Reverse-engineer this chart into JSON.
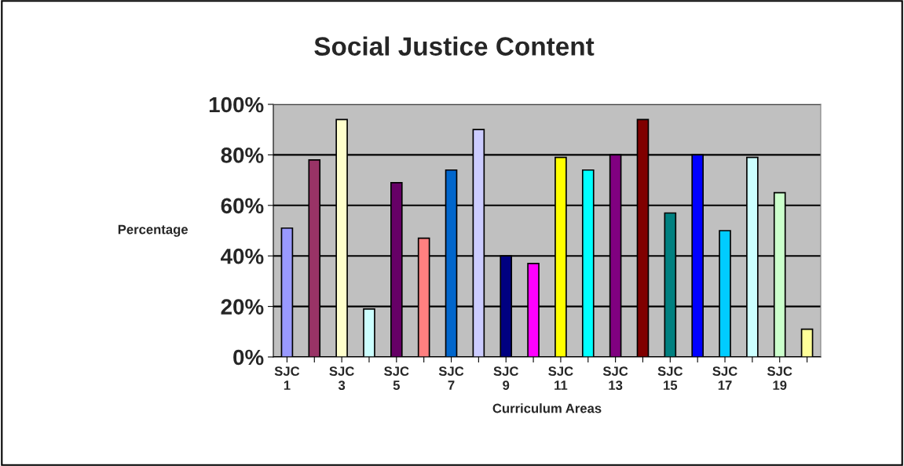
{
  "chart_data": {
    "type": "bar",
    "title": "Social Justice Content",
    "xlabel": "Curriculum Areas",
    "ylabel": "Percentage",
    "categories": [
      "SJC 1",
      null,
      "SJC 3",
      null,
      "SJC 5",
      null,
      "SJC 7",
      null,
      "SJC 9",
      null,
      "SJC 11",
      null,
      "SJC 13",
      null,
      "SJC 15",
      null,
      "SJC 17",
      null,
      "SJC 19",
      null
    ],
    "values": [
      51,
      78,
      94,
      19,
      69,
      47,
      74,
      90,
      40,
      37,
      79,
      74,
      80,
      94,
      57,
      80,
      50,
      79,
      65,
      11
    ],
    "colors": [
      "#9999ff",
      "#993366",
      "#ffffcc",
      "#ccffff",
      "#660066",
      "#ff8080",
      "#0066cc",
      "#ccccff",
      "#000080",
      "#ff00ff",
      "#ffff00",
      "#00ffff",
      "#800080",
      "#800000",
      "#008080",
      "#0000ff",
      "#00ccff",
      "#ccffff",
      "#ccffcc",
      "#ffff99"
    ],
    "ylim": [
      0,
      100
    ],
    "yticks": [
      {
        "value": 0,
        "label": "0%"
      },
      {
        "value": 20,
        "label": "20%"
      },
      {
        "value": 40,
        "label": "40%"
      },
      {
        "value": 60,
        "label": "60%"
      },
      {
        "value": 80,
        "label": "80%"
      },
      {
        "value": 100,
        "label": "100%"
      }
    ],
    "grid": "y",
    "legend": false
  }
}
